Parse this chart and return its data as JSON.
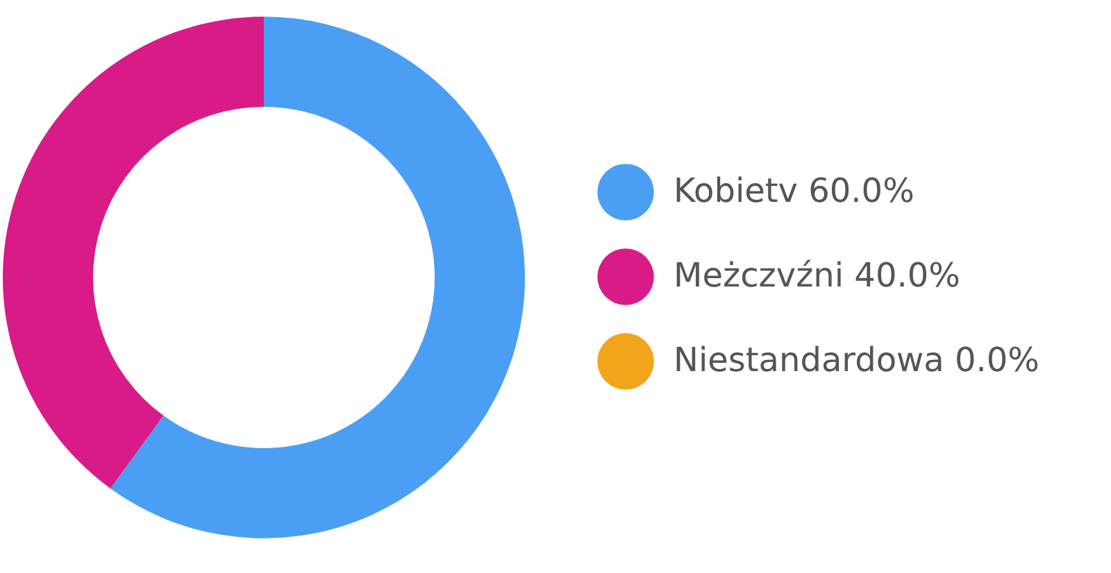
{
  "chart_data": {
    "type": "donut",
    "categories": [
      "Kobietv",
      "Meżczvźni",
      "Niestandardowa"
    ],
    "values": [
      60.0,
      40.0,
      0.0
    ],
    "value_labels": [
      "60.0%",
      "40.0%",
      "0.0%"
    ],
    "colors": [
      "#4a9ff5",
      "#d81b87",
      "#f0a51a"
    ],
    "legend": "right"
  }
}
